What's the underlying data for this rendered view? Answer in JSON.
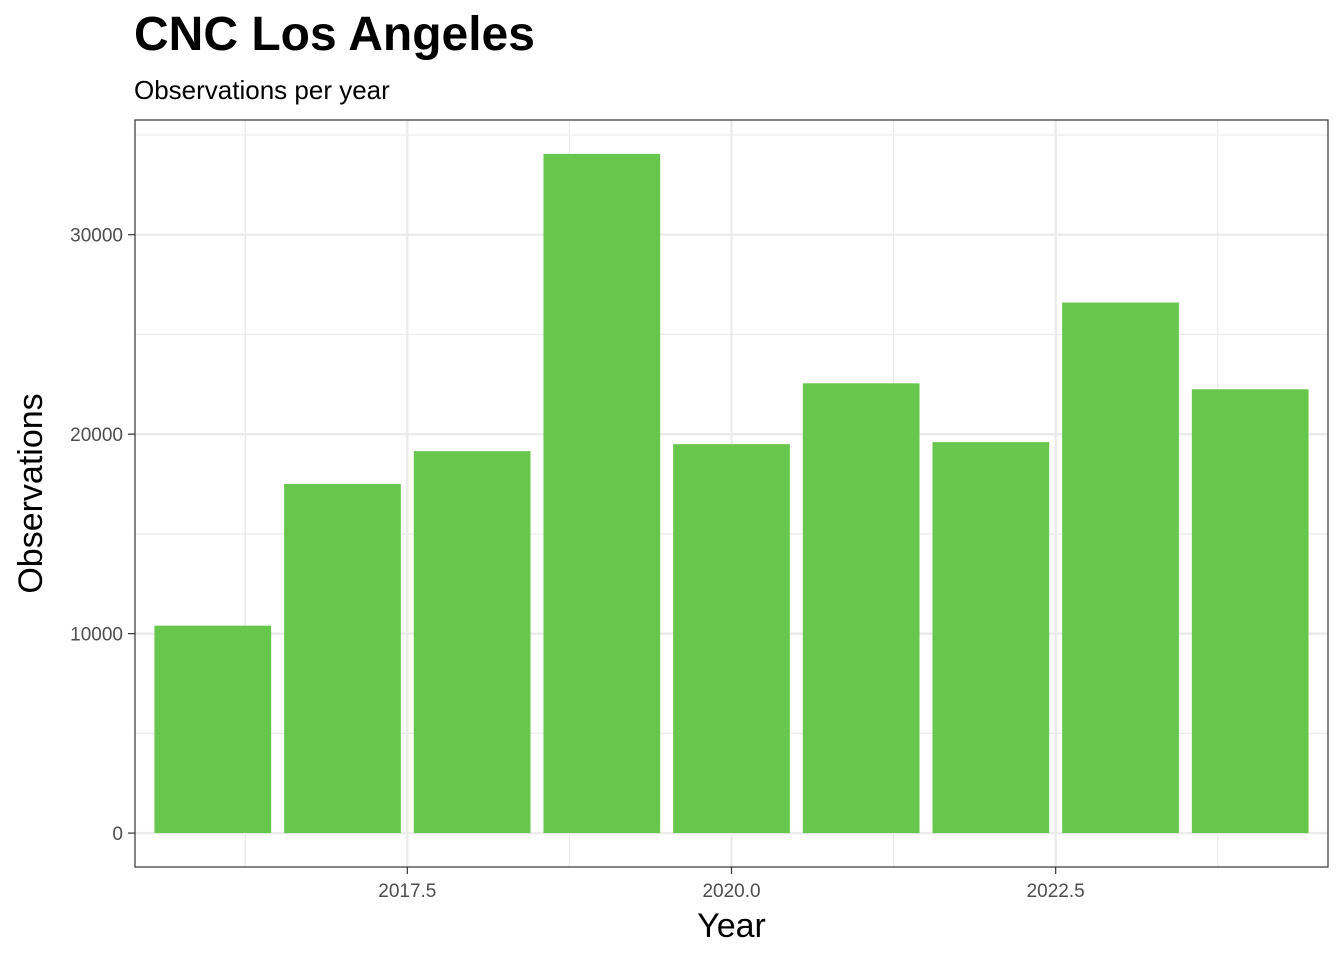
{
  "chart_data": {
    "type": "bar",
    "title": "CNC Los Angeles",
    "subtitle": "Observations per year",
    "xlabel": "Year",
    "ylabel": "Observations",
    "x": [
      2016,
      2017,
      2018,
      2019,
      2020,
      2021,
      2022,
      2023,
      2024
    ],
    "values": [
      10400,
      17500,
      19150,
      34050,
      19500,
      22550,
      19600,
      26600,
      22250
    ],
    "xlim": [
      2015.4,
      2024.6
    ],
    "ylim": [
      -1700,
      35750
    ],
    "x_ticks": [
      2017.5,
      2020.0,
      2022.5
    ],
    "x_tick_labels": [
      "2017.5",
      "2020.0",
      "2022.5"
    ],
    "y_ticks": [
      0,
      10000,
      20000,
      30000
    ],
    "y_tick_labels": [
      "0",
      "10000",
      "20000",
      "30000"
    ],
    "bar_color": "#66c74c",
    "grid": true,
    "legend": "none"
  }
}
